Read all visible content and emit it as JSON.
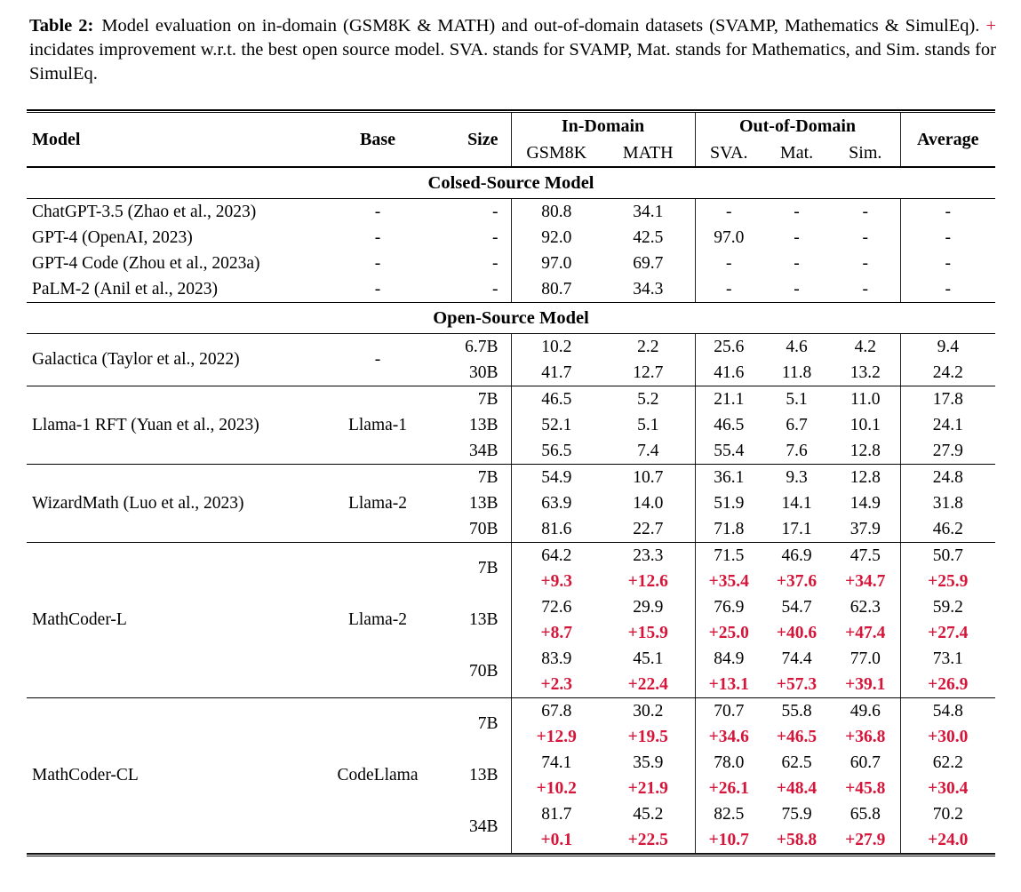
{
  "colors": {
    "accent_red": "#d6153a",
    "text": "#000000",
    "background": "#ffffff"
  },
  "caption": {
    "label": "Table 2:",
    "text_before_plus": "Model evaluation on in-domain (GSM8K & MATH) and out-of-domain datasets (SVAMP, Mathematics & SimulEq). ",
    "plus": "+",
    "text_after_plus": " incidates improvement w.r.t. the best open source model. SVA. stands for SVAMP, Mat. stands for Mathematics, and Sim. stands for SimulEq."
  },
  "table": {
    "header": {
      "model": "Model",
      "base": "Base",
      "size": "Size",
      "in_domain": "In-Domain",
      "out_of_domain": "Out-of-Domain",
      "average": "Average",
      "sub": [
        "GSM8K",
        "MATH",
        "SVA.",
        "Mat.",
        "Sim."
      ]
    },
    "sections": [
      {
        "title": "Colsed-Source Model",
        "groups": [
          {
            "rows": [
              {
                "model": "ChatGPT-3.5 (Zhao et al., 2023)",
                "base": "-",
                "size": "-",
                "values": [
                  "80.8",
                  "34.1",
                  "-",
                  "-",
                  "-",
                  "-"
                ]
              },
              {
                "model": "GPT-4 (OpenAI, 2023)",
                "base": "-",
                "size": "-",
                "values": [
                  "92.0",
                  "42.5",
                  "97.0",
                  "-",
                  "-",
                  "-"
                ]
              },
              {
                "model": "GPT-4 Code (Zhou et al., 2023a)",
                "base": "-",
                "size": "-",
                "values": [
                  "97.0",
                  "69.7",
                  "-",
                  "-",
                  "-",
                  "-"
                ]
              },
              {
                "model": "PaLM-2 (Anil et al., 2023)",
                "base": "-",
                "size": "-",
                "values": [
                  "80.7",
                  "34.3",
                  "-",
                  "-",
                  "-",
                  "-"
                ]
              }
            ]
          }
        ]
      },
      {
        "title": "Open-Source Model",
        "groups": [
          {
            "model": "Galactica (Taylor et al., 2022)",
            "base": "-",
            "rows": [
              {
                "size": "6.7B",
                "values": [
                  "10.2",
                  "2.2",
                  "25.6",
                  "4.6",
                  "4.2",
                  "9.4"
                ]
              },
              {
                "size": "30B",
                "values": [
                  "41.7",
                  "12.7",
                  "41.6",
                  "11.8",
                  "13.2",
                  "24.2"
                ]
              }
            ]
          },
          {
            "model": "Llama-1 RFT (Yuan et al., 2023)",
            "base": "Llama-1",
            "rows": [
              {
                "size": "7B",
                "values": [
                  "46.5",
                  "5.2",
                  "21.1",
                  "5.1",
                  "11.0",
                  "17.8"
                ]
              },
              {
                "size": "13B",
                "values": [
                  "52.1",
                  "5.1",
                  "46.5",
                  "6.7",
                  "10.1",
                  "24.1"
                ]
              },
              {
                "size": "34B",
                "values": [
                  "56.5",
                  "7.4",
                  "55.4",
                  "7.6",
                  "12.8",
                  "27.9"
                ]
              }
            ]
          },
          {
            "model": "WizardMath (Luo et al., 2023)",
            "base": "Llama-2",
            "rows": [
              {
                "size": "7B",
                "values": [
                  "54.9",
                  "10.7",
                  "36.1",
                  "9.3",
                  "12.8",
                  "24.8"
                ]
              },
              {
                "size": "13B",
                "values": [
                  "63.9",
                  "14.0",
                  "51.9",
                  "14.1",
                  "14.9",
                  "31.8"
                ]
              },
              {
                "size": "70B",
                "values": [
                  "81.6",
                  "22.7",
                  "71.8",
                  "17.1",
                  "37.9",
                  "46.2"
                ]
              }
            ]
          },
          {
            "model": "MathCoder-L",
            "base": "Llama-2",
            "rows": [
              {
                "size": "7B",
                "values": [
                  "64.2",
                  "23.3",
                  "71.5",
                  "46.9",
                  "47.5",
                  "50.7"
                ],
                "deltas": [
                  "+9.3",
                  "+12.6",
                  "+35.4",
                  "+37.6",
                  "+34.7",
                  "+25.9"
                ]
              },
              {
                "size": "13B",
                "values": [
                  "72.6",
                  "29.9",
                  "76.9",
                  "54.7",
                  "62.3",
                  "59.2"
                ],
                "deltas": [
                  "+8.7",
                  "+15.9",
                  "+25.0",
                  "+40.6",
                  "+47.4",
                  "+27.4"
                ]
              },
              {
                "size": "70B",
                "values": [
                  "83.9",
                  "45.1",
                  "84.9",
                  "74.4",
                  "77.0",
                  "73.1"
                ],
                "deltas": [
                  "+2.3",
                  "+22.4",
                  "+13.1",
                  "+57.3",
                  "+39.1",
                  "+26.9"
                ]
              }
            ]
          },
          {
            "model": "MathCoder-CL",
            "base": "CodeLlama",
            "rows": [
              {
                "size": "7B",
                "values": [
                  "67.8",
                  "30.2",
                  "70.7",
                  "55.8",
                  "49.6",
                  "54.8"
                ],
                "deltas": [
                  "+12.9",
                  "+19.5",
                  "+34.6",
                  "+46.5",
                  "+36.8",
                  "+30.0"
                ]
              },
              {
                "size": "13B",
                "values": [
                  "74.1",
                  "35.9",
                  "78.0",
                  "62.5",
                  "60.7",
                  "62.2"
                ],
                "deltas": [
                  "+10.2",
                  "+21.9",
                  "+26.1",
                  "+48.4",
                  "+45.8",
                  "+30.4"
                ]
              },
              {
                "size": "34B",
                "values": [
                  "81.7",
                  "45.2",
                  "82.5",
                  "75.9",
                  "65.8",
                  "70.2"
                ],
                "deltas": [
                  "+0.1",
                  "+22.5",
                  "+10.7",
                  "+58.8",
                  "+27.9",
                  "+24.0"
                ]
              }
            ]
          }
        ]
      }
    ]
  }
}
